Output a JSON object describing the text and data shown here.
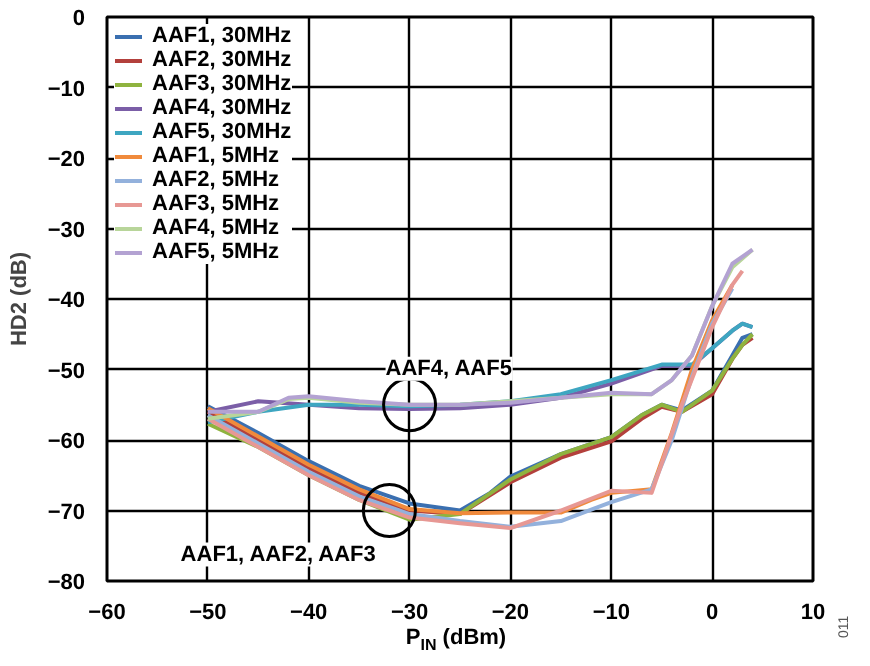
{
  "chart_data": {
    "type": "line",
    "xlabel": "P$_{IN}$ (dBm)",
    "ylabel": "HD2 (dB)",
    "xlim": [
      -60,
      10
    ],
    "ylim": [
      -80,
      0
    ],
    "xticks": [
      -60,
      -50,
      -40,
      -30,
      -20,
      -10,
      0,
      10
    ],
    "yticks": [
      -80,
      -70,
      -60,
      -50,
      -40,
      -30,
      -20,
      -10,
      0
    ],
    "grid": true,
    "legend": "top left",
    "line_style": "solid",
    "marker": "none",
    "annotations": [
      {
        "text": "AAF4, AAF5",
        "x": -30,
        "y": -55
      },
      {
        "text": "AAF1, AAF2, AAF3",
        "x": -32,
        "y": -70
      },
      "011"
    ],
    "series": [
      {
        "name": "AAF1, 30MHz",
        "color": "#3a6fb0",
        "x": [
          -50,
          -45,
          -40,
          -35,
          -30,
          -25,
          -22,
          -20,
          -15,
          -10,
          -7,
          -5,
          -3,
          0,
          2,
          3,
          4
        ],
        "values": [
          -55.2,
          -59,
          -63,
          -66.5,
          -69,
          -70,
          -67.5,
          -65.2,
          -62,
          -59.6,
          -56.5,
          -55,
          -55.8,
          -53,
          -48,
          -45.5,
          -45
        ]
      },
      {
        "name": "AAF2, 30MHz",
        "color": "#b3403c",
        "x": [
          -50,
          -45,
          -40,
          -35,
          -30,
          -25,
          -20,
          -15,
          -10,
          -7,
          -5,
          -3,
          0,
          2,
          3,
          4
        ],
        "values": [
          -56,
          -60,
          -64,
          -67.5,
          -70,
          -70.5,
          -66,
          -62.5,
          -60.2,
          -57,
          -55.3,
          -56,
          -53.5,
          -48.5,
          -46.5,
          -45.5
        ]
      },
      {
        "name": "AAF3, 30MHz",
        "color": "#8fb33f",
        "x": [
          -50,
          -45,
          -40,
          -35,
          -30,
          -25,
          -20,
          -15,
          -10,
          -7,
          -5,
          -3,
          0,
          2,
          3,
          4
        ],
        "values": [
          -57.7,
          -61,
          -65,
          -68.5,
          -71.3,
          -70.5,
          -65.6,
          -62,
          -59.6,
          -56.5,
          -55,
          -56,
          -53,
          -48.5,
          -46.5,
          -45
        ]
      },
      {
        "name": "AAF4, 30MHz",
        "color": "#7b5ea7",
        "x": [
          -50,
          -45,
          -40,
          -35,
          -30,
          -25,
          -20,
          -15,
          -10,
          -5,
          -2,
          0,
          2,
          3,
          4
        ],
        "values": [
          -56,
          -54.5,
          -55,
          -55.5,
          -55.6,
          -55.5,
          -55,
          -54,
          -52,
          -49.5,
          -49.5,
          -47,
          -44.5,
          -43.5,
          -44
        ]
      },
      {
        "name": "AAF5, 30MHz",
        "color": "#3ea6c1",
        "x": [
          -50,
          -45,
          -40,
          -35,
          -30,
          -25,
          -20,
          -15,
          -10,
          -5,
          -2,
          0,
          2,
          3,
          4
        ],
        "values": [
          -57.5,
          -56,
          -55,
          -55,
          -55.2,
          -55,
          -54.5,
          -53.5,
          -51.5,
          -49.3,
          -49.3,
          -47,
          -44.5,
          -43.5,
          -44
        ]
      },
      {
        "name": "AAF1, 5MHz",
        "color": "#f08a3c",
        "x": [
          -50,
          -45,
          -40,
          -35,
          -30,
          -25,
          -20,
          -15,
          -12,
          -10,
          -6,
          -4,
          -2,
          0,
          2
        ],
        "values": [
          -55.5,
          -59.5,
          -63.5,
          -67,
          -69.8,
          -70.4,
          -70.3,
          -70.3,
          -68.5,
          -67.5,
          -67,
          -59,
          -50,
          -43,
          -38
        ]
      },
      {
        "name": "AAF2, 5MHz",
        "color": "#93b1dc",
        "x": [
          -50,
          -45,
          -40,
          -35,
          -30,
          -25,
          -20,
          -15,
          -10,
          -6,
          -4,
          -2,
          0,
          2
        ],
        "values": [
          -56.5,
          -60.5,
          -64.5,
          -68,
          -70.5,
          -71.5,
          -72.3,
          -71.5,
          -68.8,
          -67,
          -60,
          -51,
          -43.5,
          -38.5
        ]
      },
      {
        "name": "AAF3, 5MHz",
        "color": "#e79894",
        "x": [
          -50,
          -45,
          -40,
          -35,
          -30,
          -25,
          -20,
          -15,
          -10,
          -6,
          -3,
          0,
          2,
          3
        ],
        "values": [
          -57,
          -61,
          -65,
          -68.5,
          -71,
          -71.8,
          -72.5,
          -70,
          -67.2,
          -67.5,
          -55,
          -44,
          -38,
          -36
        ]
      },
      {
        "name": "AAF4, 5MHz",
        "color": "#b8d59a",
        "x": [
          -50,
          -45,
          -42,
          -40,
          -35,
          -30,
          -25,
          -20,
          -15,
          -10,
          -6,
          -4,
          -2,
          0,
          2,
          4
        ],
        "values": [
          -57,
          -56,
          -54.2,
          -54,
          -54.7,
          -55,
          -55,
          -54.5,
          -54,
          -53.5,
          -53.5,
          -51.5,
          -48,
          -41,
          -35.5,
          -33
        ]
      },
      {
        "name": "AAF5, 5MHz",
        "color": "#b3a2d2",
        "x": [
          -50,
          -45,
          -42,
          -40,
          -35,
          -30,
          -25,
          -20,
          -15,
          -10,
          -6,
          -4,
          -2,
          0,
          2,
          4
        ],
        "values": [
          -56,
          -56,
          -54,
          -53.8,
          -54.5,
          -55,
          -55,
          -54.7,
          -54,
          -53.3,
          -53.5,
          -51.5,
          -48,
          -41,
          -35,
          -33
        ]
      }
    ]
  }
}
